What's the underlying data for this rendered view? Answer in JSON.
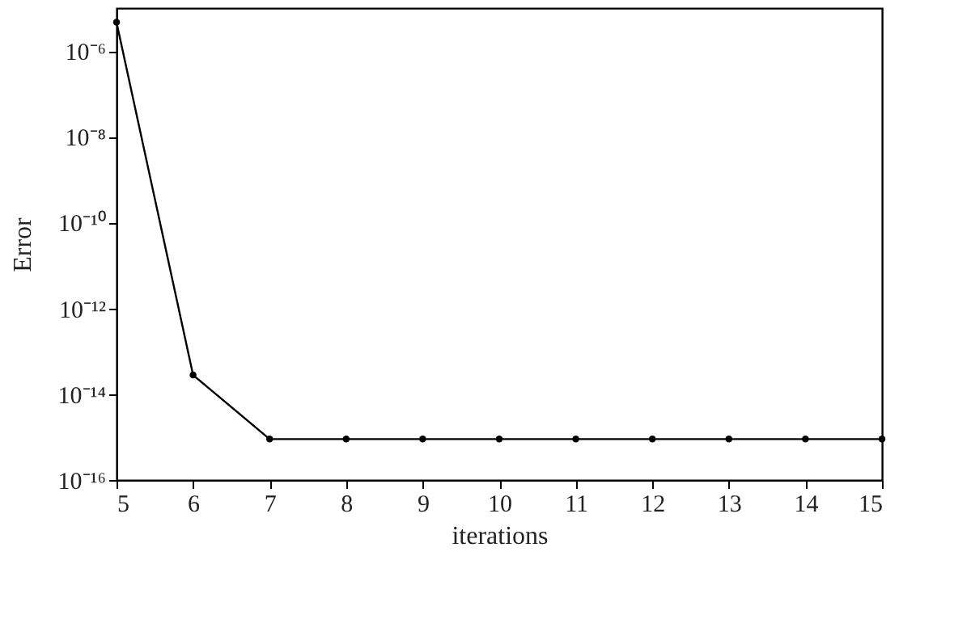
{
  "chart_data": {
    "type": "line",
    "xlabel": "iterations",
    "ylabel": "Error",
    "x": [
      5,
      6,
      7,
      8,
      9,
      10,
      11,
      12,
      13,
      14,
      15
    ],
    "series": [
      {
        "color": "#000000",
        "values": [
          4.7e-06,
          2.8e-14,
          9e-16,
          9e-16,
          9e-16,
          9e-16,
          9e-16,
          9e-16,
          9e-16,
          9e-16,
          9e-16
        ]
      }
    ],
    "log": true,
    "xlim": [
      5,
      15
    ],
    "xticks": [
      5,
      6,
      7,
      8,
      9,
      10,
      11,
      12,
      13,
      14,
      15
    ],
    "ylim": [
      1e-16,
      1e-05
    ],
    "yticks": [
      {
        "value": 1e-16,
        "label": "10⁻¹⁶"
      },
      {
        "value": 1e-14,
        "label": "10⁻¹⁴"
      },
      {
        "value": 1e-12,
        "label": "10⁻¹²"
      },
      {
        "value": 1e-10,
        "label": "10⁻¹⁰"
      },
      {
        "value": 1e-08,
        "label": "10⁻⁸"
      },
      {
        "value": 1e-06,
        "label": "10⁻⁶"
      }
    ],
    "grid": false,
    "marker": "circle",
    "line_style": "solid"
  }
}
